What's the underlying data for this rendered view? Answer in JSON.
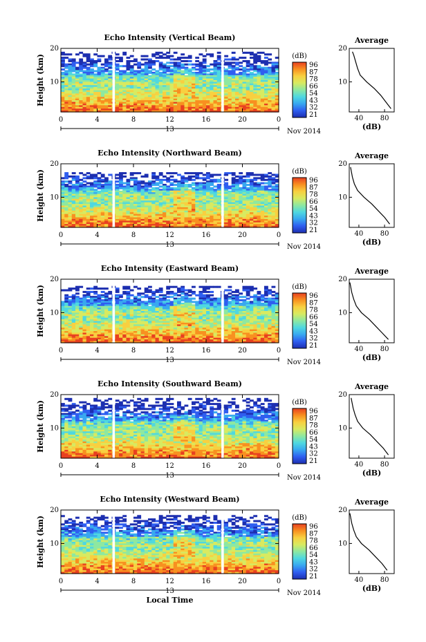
{
  "figure": {
    "xaxis_label": "Local Time",
    "date_label": "Nov 2014",
    "date_tick_label": "13",
    "colorbar_unit": "(dB)",
    "colorbar_ticks": [
      "96",
      "87",
      "78",
      "66",
      "54",
      "43",
      "32",
      "21"
    ],
    "profile_title": "Average",
    "profile_xlabel": "(dB)"
  },
  "chart_data": [
    {
      "type": "heatmap",
      "title": "Echo Intensity (Vertical Beam)",
      "ylabel": "Height (km)",
      "yticks": [
        10,
        20
      ],
      "ylim": [
        1,
        20
      ],
      "xticks": [
        "0",
        "4",
        "8",
        "12",
        "16",
        "20",
        "0"
      ],
      "xlim": [
        0,
        24
      ],
      "data_gaps_hours": [
        5.8,
        17.8
      ],
      "color_range_db": [
        21,
        96
      ],
      "palette": [
        "#1d2fb0",
        "#2f5ef0",
        "#38a8f0",
        "#4fd8e0",
        "#8ee8a0",
        "#d8ea60",
        "#f8d040",
        "#f89020",
        "#e84020"
      ],
      "echo_top_km": 19,
      "profile": {
        "title": "Average",
        "xlabel": "(dB)",
        "xticks": [
          40,
          80
        ],
        "xlim": [
          25,
          95
        ],
        "heights_km": [
          2,
          4,
          6,
          8,
          10,
          12,
          14,
          16,
          18,
          19
        ],
        "values_db": [
          90,
          82,
          74,
          64,
          52,
          42,
          38,
          35,
          32,
          30
        ]
      }
    },
    {
      "type": "heatmap",
      "title": "Echo Intensity (Northward Beam)",
      "ylabel": "Height (km)",
      "yticks": [
        10,
        20
      ],
      "ylim": [
        1,
        20
      ],
      "xticks": [
        "0",
        "4",
        "8",
        "12",
        "16",
        "20",
        "0"
      ],
      "xlim": [
        0,
        24
      ],
      "data_gaps_hours": [
        5.8,
        17.8
      ],
      "color_range_db": [
        21,
        96
      ],
      "palette": [
        "#1d2fb0",
        "#2f5ef0",
        "#38a8f0",
        "#4fd8e0",
        "#8ee8a0",
        "#d8ea60",
        "#f8d040",
        "#f89020",
        "#e84020"
      ],
      "echo_top_km": 17.5,
      "profile": {
        "title": "Average",
        "xlabel": "(dB)",
        "xticks": [
          40,
          80
        ],
        "xlim": [
          25,
          95
        ],
        "heights_km": [
          2,
          4,
          6,
          8,
          10,
          12,
          14,
          16,
          18,
          19
        ],
        "values_db": [
          88,
          80,
          70,
          60,
          48,
          38,
          33,
          30,
          28,
          27
        ]
      }
    },
    {
      "type": "heatmap",
      "title": "Echo Intensity (Eastward Beam)",
      "ylabel": "Height (km)",
      "yticks": [
        10,
        20
      ],
      "ylim": [
        1,
        20
      ],
      "xticks": [
        "0",
        "4",
        "8",
        "12",
        "16",
        "20",
        "0"
      ],
      "xlim": [
        0,
        24
      ],
      "data_gaps_hours": [
        5.8,
        17.8
      ],
      "color_range_db": [
        21,
        96
      ],
      "palette": [
        "#1d2fb0",
        "#2f5ef0",
        "#38a8f0",
        "#4fd8e0",
        "#8ee8a0",
        "#d8ea60",
        "#f8d040",
        "#f89020",
        "#e84020"
      ],
      "echo_top_km": 18,
      "profile": {
        "title": "Average",
        "xlabel": "(dB)",
        "xticks": [
          40,
          80
        ],
        "xlim": [
          25,
          95
        ],
        "heights_km": [
          2,
          4,
          6,
          8,
          10,
          12,
          14,
          16,
          18,
          19
        ],
        "values_db": [
          86,
          76,
          66,
          56,
          44,
          36,
          32,
          29,
          27,
          26
        ]
      }
    },
    {
      "type": "heatmap",
      "title": "Echo Intensity (Southward Beam)",
      "ylabel": "Height (km)",
      "yticks": [
        10,
        20
      ],
      "ylim": [
        1,
        20
      ],
      "xticks": [
        "0",
        "4",
        "8",
        "12",
        "16",
        "20",
        "0"
      ],
      "xlim": [
        0,
        24
      ],
      "data_gaps_hours": [
        5.8,
        17.8
      ],
      "color_range_db": [
        21,
        96
      ],
      "palette": [
        "#1d2fb0",
        "#2f5ef0",
        "#38a8f0",
        "#4fd8e0",
        "#8ee8a0",
        "#d8ea60",
        "#f8d040",
        "#f89020",
        "#e84020"
      ],
      "echo_top_km": 19,
      "profile": {
        "title": "Average",
        "xlabel": "(dB)",
        "xticks": [
          40,
          80
        ],
        "xlim": [
          25,
          95
        ],
        "heights_km": [
          2,
          4,
          6,
          8,
          10,
          12,
          14,
          16,
          18,
          19
        ],
        "values_db": [
          86,
          78,
          68,
          58,
          46,
          38,
          34,
          31,
          29,
          28
        ]
      }
    },
    {
      "type": "heatmap",
      "title": "Echo Intensity (Westward Beam)",
      "ylabel": "Height (km)",
      "yticks": [
        10,
        20
      ],
      "ylim": [
        1,
        20
      ],
      "xticks": [
        "0",
        "4",
        "8",
        "12",
        "16",
        "20",
        "0"
      ],
      "xlim": [
        0,
        24
      ],
      "data_gaps_hours": [
        5.8,
        17.8
      ],
      "color_range_db": [
        21,
        96
      ],
      "palette": [
        "#1d2fb0",
        "#2f5ef0",
        "#38a8f0",
        "#4fd8e0",
        "#8ee8a0",
        "#d8ea60",
        "#f8d040",
        "#f89020",
        "#e84020"
      ],
      "echo_top_km": 18.5,
      "profile": {
        "title": "Average",
        "xlabel": "(dB)",
        "xticks": [
          40,
          80
        ],
        "xlim": [
          25,
          95
        ],
        "heights_km": [
          2,
          4,
          6,
          8,
          10,
          12,
          14,
          16,
          18,
          19
        ],
        "values_db": [
          84,
          76,
          66,
          56,
          44,
          36,
          32,
          29,
          27,
          26
        ]
      }
    }
  ]
}
